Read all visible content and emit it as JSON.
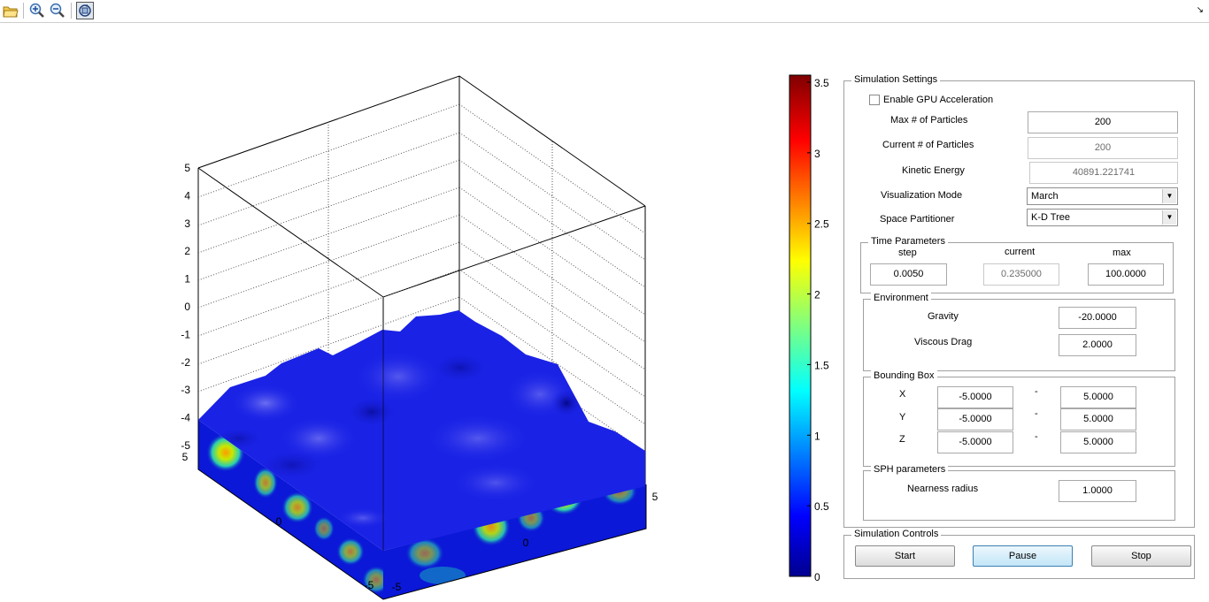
{
  "toolbar": {
    "buttons": [
      {
        "icon": "open-folder-icon"
      },
      {
        "icon": "zoom-in-icon"
      },
      {
        "icon": "zoom-out-icon"
      },
      {
        "icon": "rotate-3d-icon"
      }
    ]
  },
  "colorbar": {
    "ticks": [
      "3.5",
      "3",
      "2.5",
      "2",
      "1.5",
      "1",
      "0.5",
      "0"
    ],
    "range": [
      0,
      3.55
    ]
  },
  "plot": {
    "z_ticks": [
      "5",
      "4",
      "3",
      "2",
      "1",
      "0",
      "-1",
      "-2",
      "-3",
      "-4",
      "-5"
    ],
    "x_ticks": [
      "5",
      "0",
      "-5"
    ],
    "y_ticks": [
      "-5",
      "0",
      "5"
    ]
  },
  "simulation_settings": {
    "title": "Simulation Settings",
    "gpu_label": "Enable GPU Acceleration",
    "gpu_checked": false,
    "max_particles_label": "Max # of Particles",
    "max_particles": "200",
    "current_particles_label": "Current # of Particles",
    "current_particles": "200",
    "kinetic_energy_label": "Kinetic Energy",
    "kinetic_energy": "40891.221741",
    "vis_mode_label": "Visualization Mode",
    "vis_mode": "March",
    "partitioner_label": "Space Partitioner",
    "partitioner": "K-D Tree"
  },
  "time_parameters": {
    "title": "Time Parameters",
    "step_label": "step",
    "step": "0.0050",
    "current_label": "current",
    "current": "0.235000",
    "max_label": "max",
    "max": "100.0000"
  },
  "environment": {
    "title": "Environment",
    "gravity_label": "Gravity",
    "gravity": "-20.0000",
    "drag_label": "Viscous Drag",
    "drag": "2.0000"
  },
  "bounding_box": {
    "title": "Bounding Box",
    "dash": "-",
    "x_label": "X",
    "x_min": "-5.0000",
    "x_max": "5.0000",
    "y_label": "Y",
    "y_min": "-5.0000",
    "y_max": "5.0000",
    "z_label": "Z",
    "z_min": "-5.0000",
    "z_max": "5.0000"
  },
  "sph": {
    "title": "SPH parameters",
    "radius_label": "Nearness radius",
    "radius": "1.0000"
  },
  "controls": {
    "title": "Simulation Controls",
    "start": "Start",
    "pause": "Pause",
    "stop": "Stop"
  },
  "colors": {
    "surface": "#1a22e6",
    "panel_border": "#a0a0a0",
    "focus_button": "#c3e5f7"
  }
}
